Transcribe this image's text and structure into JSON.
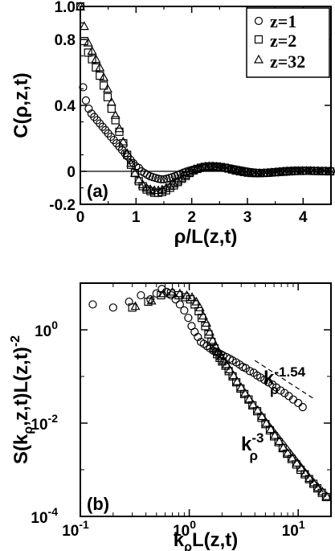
{
  "chart_data": [
    {
      "type": "scatter",
      "panel_label": "(a)",
      "xlabel": "ρ/L(z,t)",
      "ylabel": "C(ρ,z,t)",
      "xlim": [
        0,
        4.5
      ],
      "ylim": [
        -0.2,
        1.0
      ],
      "x_ticks": [
        {
          "value": 0,
          "label": "0"
        },
        {
          "value": 1,
          "label": "1"
        },
        {
          "value": 2,
          "label": "2"
        },
        {
          "value": 3,
          "label": "3"
        },
        {
          "value": 4,
          "label": "4"
        }
      ],
      "y_ticks": [
        {
          "value": -0.2,
          "label": "-0.2"
        },
        {
          "value": 0,
          "label": "0"
        },
        {
          "value": 0.4,
          "label": "0.4"
        },
        {
          "value": 0.8,
          "label": "0.8"
        },
        {
          "value": 1.0,
          "label": "1.0"
        }
      ],
      "zero_line": true,
      "legend": {
        "placement": "top-right"
      },
      "series": [
        {
          "name": "z=1",
          "marker": "circle",
          "x": [
            0,
            0.05,
            0.1,
            0.15,
            0.2,
            0.25,
            0.3,
            0.35,
            0.4,
            0.45,
            0.5,
            0.55,
            0.6,
            0.65,
            0.7,
            0.75,
            0.8,
            0.85,
            0.9,
            0.95,
            1.0,
            1.05,
            1.1,
            1.15,
            1.2,
            1.25,
            1.3,
            1.35,
            1.4,
            1.45,
            1.5,
            1.55,
            1.6,
            1.65,
            1.7,
            1.75,
            1.8,
            1.85,
            1.9,
            1.95,
            2.0,
            2.05,
            2.1,
            2.15,
            2.2,
            2.25,
            2.3,
            2.35,
            2.4,
            2.45,
            2.5,
            2.55,
            2.6,
            2.65,
            2.7,
            2.75,
            2.8,
            2.85,
            2.9,
            2.95,
            3.0,
            3.05,
            3.1,
            3.15,
            3.2,
            3.25,
            3.3,
            3.35,
            3.4,
            3.45,
            3.5,
            3.55,
            3.6,
            3.65,
            3.7,
            3.75,
            3.8,
            3.85,
            3.9,
            3.95,
            4.0,
            4.05,
            4.1,
            4.15,
            4.2,
            4.25,
            4.3,
            4.35,
            4.4,
            4.45,
            4.5
          ],
          "y": [
            1.0,
            0.51,
            0.43,
            0.38,
            0.35,
            0.33,
            0.31,
            0.29,
            0.27,
            0.25,
            0.23,
            0.21,
            0.19,
            0.17,
            0.15,
            0.13,
            0.11,
            0.09,
            0.07,
            0.05,
            0.03,
            0.02,
            0.0,
            -0.01,
            -0.02,
            -0.03,
            -0.035,
            -0.04,
            -0.045,
            -0.048,
            -0.048,
            -0.045,
            -0.04,
            -0.035,
            -0.03,
            -0.022,
            -0.015,
            -0.008,
            -0.002,
            0.004,
            0.008,
            0.012,
            0.015,
            0.018,
            0.021,
            0.023,
            0.025,
            0.026,
            0.026,
            0.026,
            0.025,
            0.024,
            0.022,
            0.02,
            0.017,
            0.014,
            0.011,
            0.008,
            0.005,
            0.002,
            -0.001,
            -0.004,
            -0.006,
            -0.008,
            -0.009,
            -0.01,
            -0.01,
            -0.01,
            -0.009,
            -0.008,
            -0.007,
            -0.006,
            -0.005,
            -0.004,
            -0.003,
            -0.002,
            -0.001,
            0.0,
            0.001,
            0.002,
            0.002,
            0.003,
            0.003,
            0.003,
            0.003,
            0.003,
            0.002,
            0.002,
            0.001,
            0.001,
            0.0
          ]
        },
        {
          "name": "z=2",
          "marker": "square",
          "x": [
            0,
            0.07,
            0.14,
            0.21,
            0.28,
            0.35,
            0.42,
            0.49,
            0.56,
            0.63,
            0.7,
            0.77,
            0.84,
            0.91,
            0.98,
            1.05,
            1.12,
            1.19,
            1.26,
            1.33,
            1.4,
            1.47,
            1.54,
            1.61,
            1.68,
            1.75,
            1.82,
            1.89,
            1.96,
            2.03,
            2.1,
            2.17,
            2.24,
            2.31,
            2.38,
            2.45,
            2.52,
            2.59,
            2.66,
            2.73,
            2.8,
            2.87,
            2.94,
            3.01,
            3.08,
            3.15,
            3.22,
            3.29,
            3.36,
            3.43,
            3.5,
            3.57,
            3.64,
            3.71,
            3.78,
            3.85,
            3.92,
            3.99,
            4.06,
            4.13,
            4.2,
            4.27,
            4.34,
            4.41,
            4.48
          ],
          "y": [
            1.0,
            0.79,
            0.72,
            0.68,
            0.63,
            0.58,
            0.52,
            0.45,
            0.38,
            0.31,
            0.24,
            0.17,
            0.1,
            0.04,
            -0.01,
            -0.06,
            -0.09,
            -0.11,
            -0.12,
            -0.13,
            -0.13,
            -0.125,
            -0.115,
            -0.1,
            -0.085,
            -0.065,
            -0.045,
            -0.028,
            -0.01,
            0.005,
            0.015,
            0.022,
            0.027,
            0.03,
            0.03,
            0.029,
            0.026,
            0.022,
            0.017,
            0.011,
            0.005,
            0.0,
            -0.004,
            -0.008,
            -0.01,
            -0.011,
            -0.011,
            -0.01,
            -0.009,
            -0.007,
            -0.005,
            -0.003,
            -0.001,
            0.001,
            0.002,
            0.003,
            0.003,
            0.003,
            0.003,
            0.003,
            0.002,
            0.002,
            0.001,
            0.001,
            0.0
          ]
        },
        {
          "name": "z=32",
          "marker": "triangle",
          "x": [
            0,
            0.07,
            0.14,
            0.21,
            0.28,
            0.35,
            0.42,
            0.49,
            0.56,
            0.63,
            0.7,
            0.77,
            0.84,
            0.91,
            0.98,
            1.05,
            1.12,
            1.19,
            1.26,
            1.33,
            1.4,
            1.47,
            1.54,
            1.61,
            1.68,
            1.75,
            1.82,
            1.89,
            1.96,
            2.03,
            2.1,
            2.17,
            2.24,
            2.31,
            2.38,
            2.45,
            2.52,
            2.59,
            2.66,
            2.73,
            2.8,
            2.87,
            2.94,
            3.01,
            3.08,
            3.15,
            3.22,
            3.29,
            3.36,
            3.43,
            3.5,
            3.57,
            3.64,
            3.71,
            3.78,
            3.85,
            3.92,
            3.99,
            4.06,
            4.13,
            4.2,
            4.27,
            4.34,
            4.41,
            4.48
          ],
          "y": [
            1.0,
            0.88,
            0.78,
            0.73,
            0.68,
            0.63,
            0.57,
            0.5,
            0.42,
            0.34,
            0.26,
            0.18,
            0.11,
            0.05,
            -0.01,
            -0.05,
            -0.08,
            -0.1,
            -0.11,
            -0.115,
            -0.115,
            -0.11,
            -0.1,
            -0.09,
            -0.075,
            -0.058,
            -0.04,
            -0.022,
            -0.006,
            0.008,
            0.018,
            0.025,
            0.029,
            0.031,
            0.031,
            0.029,
            0.026,
            0.022,
            0.017,
            0.011,
            0.005,
            0.0,
            -0.004,
            -0.008,
            -0.01,
            -0.011,
            -0.011,
            -0.01,
            -0.009,
            -0.007,
            -0.005,
            -0.003,
            -0.001,
            0.001,
            0.002,
            0.003,
            0.003,
            0.003,
            0.003,
            0.003,
            0.002,
            0.002,
            0.001,
            0.001,
            0.0
          ]
        }
      ]
    },
    {
      "type": "scatter",
      "panel_label": "(b)",
      "xlabel": "kρL(z,t)",
      "ylabel": "S(kρ,z,t)L(z,t)-2",
      "xscale": "log",
      "yscale": "log",
      "xlim": [
        0.1,
        20
      ],
      "ylim": [
        0.0001,
        10
      ],
      "x_ticks": [
        {
          "value": 0.1,
          "label": "10",
          "exponent": "-1"
        },
        {
          "value": 1,
          "label": "10",
          "exponent": "0"
        },
        {
          "value": 10,
          "label": "10",
          "exponent": "1"
        }
      ],
      "y_ticks": [
        {
          "value": 0.0001,
          "label": "10",
          "exponent": "-4"
        },
        {
          "value": 0.01,
          "label": "10",
          "exponent": "-2"
        },
        {
          "value": 1,
          "label": "10",
          "exponent": "0"
        }
      ],
      "series": [
        {
          "name": "z=1",
          "marker": "circle",
          "x": [
            0.13,
            0.2,
            0.28,
            0.36,
            0.44,
            0.5,
            0.56,
            0.62,
            0.68,
            0.75,
            0.82,
            0.9,
            0.98,
            1.05,
            1.12,
            1.2,
            1.28,
            1.36,
            1.45,
            1.55,
            1.65,
            1.75,
            1.85,
            1.95,
            2.05,
            2.2,
            2.35,
            2.5,
            2.7,
            2.9,
            3.1,
            3.3,
            3.6,
            3.9,
            4.2,
            4.5,
            4.9,
            5.3,
            5.8,
            6.3,
            6.9,
            7.5,
            8.2,
            9.0,
            10.0,
            11.0
          ],
          "y": [
            3.5,
            3.0,
            4.0,
            5.5,
            4.5,
            6.0,
            7.5,
            6.5,
            5.5,
            4.5,
            3.5,
            2.6,
            1.8,
            1.2,
            0.9,
            0.7,
            0.55,
            0.5,
            0.45,
            0.4,
            0.36,
            0.34,
            0.32,
            0.3,
            0.28,
            0.26,
            0.24,
            0.22,
            0.2,
            0.18,
            0.16,
            0.15,
            0.13,
            0.12,
            0.105,
            0.095,
            0.085,
            0.075,
            0.067,
            0.058,
            0.05,
            0.044,
            0.038,
            0.032,
            0.027,
            0.022
          ]
        },
        {
          "name": "z=2",
          "marker": "square",
          "x": [
            0.3,
            0.42,
            0.55,
            0.68,
            0.8,
            0.92,
            1.02,
            1.12,
            1.22,
            1.3,
            1.4,
            1.5,
            1.6,
            1.7,
            1.8,
            1.9,
            2.0,
            2.15,
            2.3,
            2.5,
            2.7,
            2.95,
            3.2,
            3.5,
            3.8,
            4.2,
            4.6,
            5.0,
            5.5,
            6.0,
            6.6,
            7.2,
            7.9,
            8.7,
            9.6,
            10.5,
            11.5,
            12.6,
            13.8,
            15.0,
            16.5,
            18.0
          ],
          "y": [
            3.0,
            4.0,
            5.5,
            6.0,
            5.5,
            5.0,
            4.5,
            3.5,
            2.5,
            1.8,
            1.2,
            0.8,
            0.55,
            0.4,
            0.3,
            0.25,
            0.21,
            0.17,
            0.13,
            0.1,
            0.075,
            0.055,
            0.042,
            0.032,
            0.024,
            0.018,
            0.013,
            0.0095,
            0.007,
            0.0052,
            0.0039,
            0.0029,
            0.0022,
            0.0017,
            0.0013,
            0.001,
            0.0008,
            0.00063,
            0.0005,
            0.0004,
            0.00032,
            0.00026
          ]
        },
        {
          "name": "z=32",
          "marker": "triangle",
          "x": [
            0.32,
            0.45,
            0.58,
            0.7,
            0.82,
            0.95,
            1.06,
            1.16,
            1.25,
            1.34,
            1.44,
            1.54,
            1.64,
            1.74,
            1.84,
            1.95,
            2.06,
            2.2,
            2.35,
            2.55,
            2.75,
            3.0,
            3.25,
            3.55,
            3.85,
            4.25,
            4.65,
            5.1,
            5.6,
            6.1,
            6.7,
            7.3,
            8.0,
            8.8,
            9.7,
            10.6,
            11.6,
            12.7,
            13.9,
            15.2,
            16.7,
            18.3
          ],
          "y": [
            3.2,
            4.2,
            6.0,
            6.5,
            6.0,
            5.5,
            5.0,
            4.0,
            3.0,
            2.0,
            1.4,
            0.9,
            0.6,
            0.45,
            0.33,
            0.27,
            0.22,
            0.18,
            0.14,
            0.105,
            0.078,
            0.058,
            0.044,
            0.033,
            0.025,
            0.019,
            0.014,
            0.01,
            0.0074,
            0.0055,
            0.0041,
            0.003,
            0.0023,
            0.0018,
            0.0014,
            0.0011,
            0.00085,
            0.00066,
            0.00053,
            0.00042,
            0.00034,
            0.00027
          ]
        }
      ],
      "guide_lines": [
        {
          "style": "dashed",
          "label": "k",
          "subscript": "ρ",
          "exponent": "-1.54",
          "x": [
            4,
            14
          ],
          "y": [
            0.22,
            0.033
          ]
        },
        {
          "style": "solid",
          "label": "k",
          "subscript": "ρ",
          "exponent": "-3",
          "x": [
            4.5,
            17
          ],
          "y": [
            0.018,
            0.00033
          ]
        }
      ]
    }
  ]
}
